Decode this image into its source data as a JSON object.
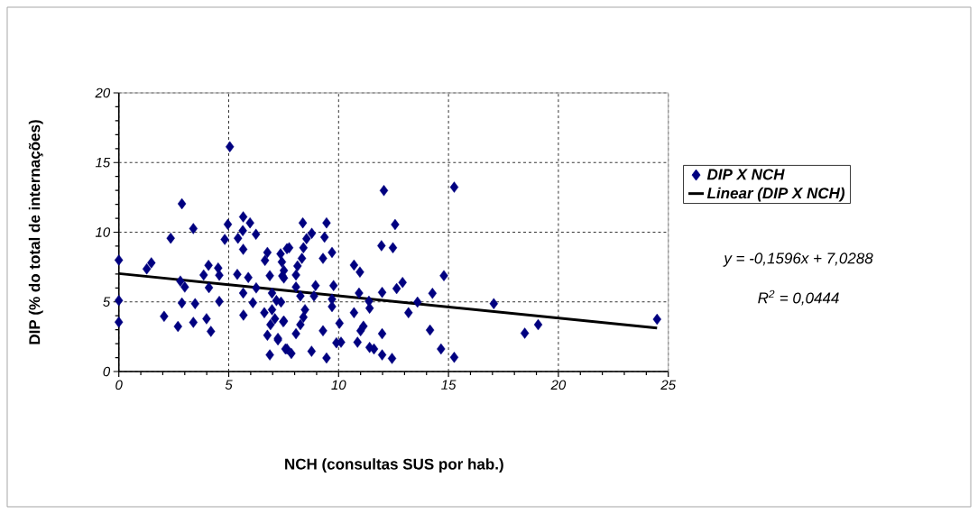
{
  "chart_data": {
    "type": "scatter",
    "xlabel": "NCH (consultas SUS por hab.)",
    "ylabel": "DIP (% do total de internações)",
    "xlim": [
      0,
      25
    ],
    "xticks": [
      0,
      5,
      10,
      15,
      20,
      25
    ],
    "ylim": [
      0,
      20
    ],
    "yticks": [
      0,
      5,
      10,
      15,
      20
    ],
    "grid": true,
    "legend": "right",
    "marker": "diamond",
    "series": [
      {
        "name": "DIP X NCH",
        "color": "#000080",
        "x": [
          0,
          0,
          0,
          1.27,
          1.48,
          2.06,
          2.36,
          2.69,
          2.87,
          2.87,
          2.8,
          3.0,
          3.39,
          3.39,
          3.47,
          3.86,
          3.99,
          4.1,
          4.08,
          4.19,
          4.52,
          4.57,
          4.57,
          4.96,
          4.82,
          5.05,
          5.39,
          5.66,
          5.97,
          5.64,
          5.42,
          6.24,
          5.66,
          5.89,
          5.66,
          6.1,
          5.67,
          6.25,
          6.76,
          6.65,
          6.87,
          6.97,
          7.36,
          7.42,
          7.44,
          7.65,
          7.38,
          6.97,
          6.62,
          7.1,
          7.48,
          6.9,
          6.76,
          7.24,
          7.58,
          6.87,
          8.37,
          9.45,
          8.78,
          8.54,
          9.36,
          7.75,
          8.4,
          9.7,
          9.29,
          8.33,
          8.13,
          7.51,
          8.06,
          7.51,
          8.95,
          9.77,
          8.06,
          8.26,
          8.88,
          9.7,
          7.17,
          9.7,
          8.47,
          7.51,
          8.4,
          8.26,
          9.29,
          8.06,
          10.04,
          7.24,
          7.65,
          7.85,
          8.77,
          9.45,
          9.9,
          10.11,
          10.7,
          10.97,
          10.93,
          11.98,
          12.64,
          12.91,
          12.06,
          12.57,
          11.95,
          12.47,
          11.38,
          10.7,
          11.41,
          11.13,
          11.0,
          10.86,
          11.41,
          11.61,
          11.98,
          11.98,
          12.43,
          13.18,
          13.59,
          14.16,
          14.27,
          14.66,
          14.79,
          15.26,
          15.26,
          17.06,
          18.47,
          19.08,
          24.49
        ],
        "values": [
          8.0,
          5.1,
          3.55,
          7.36,
          7.8,
          3.96,
          9.57,
          3.23,
          12.04,
          4.92,
          6.49,
          6.06,
          10.26,
          3.53,
          4.87,
          6.93,
          3.79,
          6.02,
          7.62,
          2.88,
          7.43,
          6.91,
          5.03,
          10.56,
          9.48,
          16.13,
          6.97,
          11.1,
          10.67,
          10.11,
          9.57,
          9.85,
          8.77,
          6.75,
          5.63,
          4.94,
          4.05,
          6.0,
          8.55,
          7.97,
          6.88,
          5.63,
          8.44,
          7.86,
          6.86,
          8.81,
          4.98,
          4.44,
          4.22,
          3.79,
          3.57,
          3.36,
          2.6,
          2.27,
          1.62,
          1.19,
          10.67,
          10.67,
          9.92,
          9.53,
          9.64,
          8.88,
          8.88,
          8.55,
          8.12,
          8.12,
          7.58,
          7.25,
          6.93,
          6.71,
          6.17,
          6.17,
          6.06,
          5.42,
          5.42,
          5.19,
          5.09,
          4.66,
          4.44,
          3.62,
          3.9,
          3.36,
          2.92,
          2.71,
          3.47,
          2.38,
          1.62,
          1.3,
          1.45,
          0.97,
          2.06,
          2.1,
          7.64,
          7.14,
          5.63,
          5.68,
          5.95,
          6.39,
          12.99,
          10.55,
          9.03,
          8.88,
          5.05,
          4.22,
          4.55,
          3.25,
          2.92,
          2.1,
          1.73,
          1.62,
          2.71,
          1.19,
          0.94,
          4.22,
          4.98,
          2.97,
          5.61,
          1.62,
          6.88,
          13.23,
          1.02,
          4.87,
          2.75,
          3.36,
          3.75
        ]
      },
      {
        "name": "Linear (DIP X NCH)",
        "type": "line",
        "color": "#000000",
        "line_style": "solid",
        "marker": "none",
        "x": [
          0,
          24.49
        ],
        "values": [
          7.03,
          3.12
        ]
      }
    ],
    "annotations": [
      "y = -0,1596x + 7,0288",
      "R$^{2}$ = 0,0444"
    ]
  }
}
